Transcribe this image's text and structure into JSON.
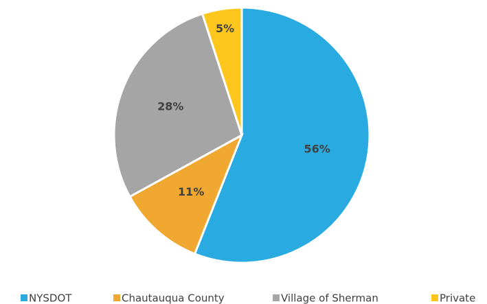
{
  "chart_data": {
    "type": "pie",
    "categories": [
      "NYSDOT",
      "Chautauqua County",
      "Village of Sherman",
      "Private"
    ],
    "values": [
      56,
      11,
      28,
      5
    ],
    "value_labels": [
      "56%",
      "11%",
      "28%",
      "5%"
    ],
    "colors": [
      "#29abe2",
      "#f0a830",
      "#a5a5a5",
      "#ffc61e"
    ],
    "legend": "bottom"
  }
}
